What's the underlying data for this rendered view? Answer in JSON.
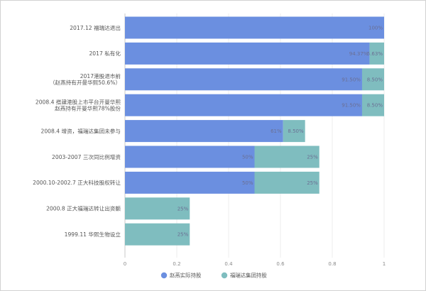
{
  "chart_data": {
    "type": "bar",
    "orientation": "horizontal",
    "stacked": true,
    "categories": [
      [
        "2017.12 福瑞达退出"
      ],
      [
        "2017 私有化"
      ],
      [
        "2017港股退市前",
        "（赵燕持有开曼华熙50.6%）"
      ],
      [
        "2008.4 搭建港股上市平台开曼华熙",
        "赵燕持有开曼华熙78%股份"
      ],
      [
        "2008.4 增资，福瑞达集团未参与"
      ],
      [
        "2003-2007 三次同比例增资"
      ],
      [
        "2000.10-2002.7 正大科技股权转让"
      ],
      [
        "2000.8 正大福瑞达转让出资额"
      ],
      [
        "1999.11 华熙生物设立"
      ]
    ],
    "series": [
      {
        "name": "赵燕实际持股",
        "color": "#6b8fe0",
        "values": [
          1.0,
          0.9437,
          0.915,
          0.915,
          0.61,
          0.5,
          0.5,
          0,
          0
        ],
        "labels": [
          "100%",
          "94.37%",
          "91.50%",
          "91.50%",
          "61%",
          "50%",
          "50%",
          "",
          ""
        ]
      },
      {
        "name": "福瑞达集团持股",
        "color": "#7fbdbf",
        "values": [
          0,
          0.0563,
          0.085,
          0.085,
          0.085,
          0.25,
          0.25,
          0.25,
          0.25
        ],
        "labels": [
          "",
          "5.63%",
          "8.50%",
          "8.50%",
          "8.50%",
          "25%",
          "25%",
          "25%",
          "25%"
        ]
      }
    ],
    "xlim": [
      0,
      1
    ],
    "xticks": [
      "0",
      "0.2",
      "0.4",
      "0.6",
      "0.8",
      "1"
    ],
    "grid": true,
    "legend_position": "bottom-center"
  }
}
